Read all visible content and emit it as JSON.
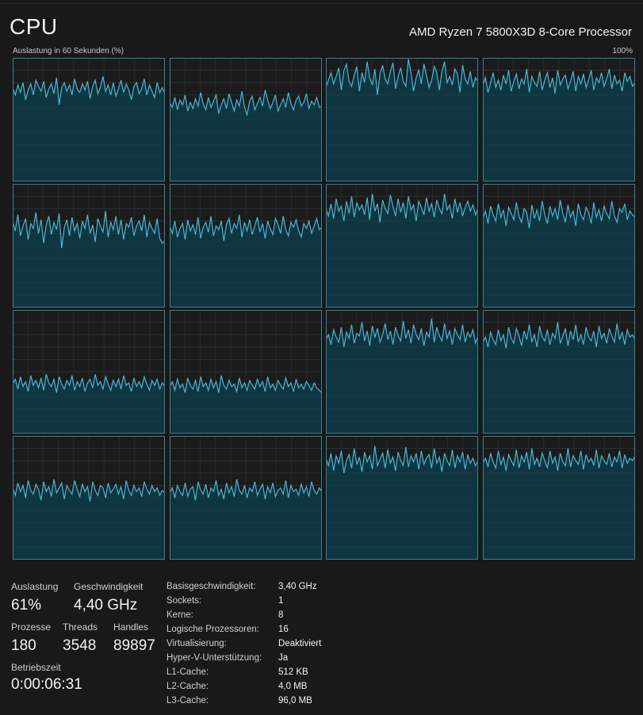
{
  "header": {
    "title": "CPU",
    "cpu_name": "AMD Ryzen 7 5800X3D 8-Core Processor",
    "graph_caption": "Auslastung in 60 Sekunden (%)",
    "graph_max": "100%"
  },
  "colors": {
    "background": "#191919",
    "graph_fill": "#0f3640",
    "graph_line": "#49b6d6",
    "graph_grid": "#1f4a55",
    "graph_border": "#3c7f91"
  },
  "chart_data": {
    "type": "area",
    "title": "Auslastung in 60 Sekunden (%)",
    "ylim": [
      0,
      100
    ],
    "grid": true,
    "series": [
      {
        "values": [
          76,
          70,
          78,
          72,
          80,
          66,
          74,
          79,
          70,
          82,
          77,
          73,
          81,
          68,
          75,
          79,
          71,
          84,
          62,
          76,
          80,
          73,
          78,
          70,
          83,
          75,
          72,
          79,
          74,
          81,
          67,
          77,
          82,
          71,
          76,
          85,
          73,
          78,
          70,
          80,
          69,
          75,
          82,
          72,
          79,
          74,
          66,
          77,
          80,
          71,
          75,
          83,
          70,
          78,
          73,
          68,
          80,
          72,
          76,
          71
        ]
      },
      {
        "values": [
          64,
          60,
          68,
          58,
          66,
          62,
          70,
          57,
          64,
          59,
          67,
          61,
          72,
          63,
          58,
          68,
          60,
          65,
          70,
          55,
          62,
          67,
          59,
          71,
          64,
          57,
          66,
          61,
          73,
          60,
          54,
          65,
          69,
          58,
          63,
          68,
          61,
          74,
          66,
          59,
          64,
          70,
          57,
          62,
          67,
          60,
          72,
          63,
          58,
          66,
          69,
          61,
          64,
          71,
          59,
          65,
          62,
          68,
          60,
          61
        ]
      },
      {
        "values": [
          76,
          82,
          88,
          79,
          85,
          92,
          74,
          90,
          95,
          81,
          77,
          86,
          93,
          73,
          88,
          80,
          97,
          84,
          78,
          91,
          70,
          87,
          94,
          83,
          79,
          89,
          96,
          75,
          85,
          92,
          81,
          77,
          99,
          88,
          73,
          84,
          90,
          79,
          95,
          86,
          76,
          82,
          93,
          88,
          74,
          89,
          97,
          80,
          85,
          78,
          91,
          87,
          72,
          94,
          83,
          79,
          89,
          76,
          84,
          81
        ]
      },
      {
        "values": [
          78,
          84,
          72,
          80,
          88,
          76,
          82,
          74,
          86,
          79,
          90,
          73,
          81,
          87,
          75,
          83,
          79,
          91,
          72,
          85,
          80,
          77,
          89,
          74,
          82,
          88,
          76,
          84,
          71,
          90,
          78,
          83,
          86,
          75,
          81,
          89,
          73,
          85,
          79,
          87,
          76,
          82,
          90,
          74,
          84,
          80,
          88,
          77,
          83,
          91,
          75,
          86,
          79,
          82,
          73,
          88,
          81,
          85,
          77,
          80
        ]
      },
      {
        "values": [
          70,
          62,
          75,
          58,
          66,
          72,
          55,
          68,
          64,
          77,
          60,
          71,
          52,
          67,
          74,
          59,
          69,
          63,
          76,
          48,
          65,
          71,
          58,
          73,
          62,
          68,
          56,
          70,
          64,
          75,
          60,
          67,
          53,
          72,
          66,
          61,
          78,
          57,
          69,
          63,
          74,
          59,
          71,
          55,
          68,
          65,
          73,
          58,
          66,
          70,
          62,
          75,
          57,
          69,
          64,
          60,
          72,
          56,
          52,
          54
        ]
      },
      {
        "values": [
          66,
          60,
          70,
          57,
          64,
          68,
          55,
          71,
          62,
          67,
          59,
          73,
          56,
          65,
          69,
          61,
          74,
          58,
          66,
          63,
          70,
          54,
          67,
          72,
          60,
          68,
          64,
          75,
          57,
          69,
          62,
          71,
          59,
          66,
          73,
          61,
          68,
          56,
          70,
          64,
          59,
          72,
          67,
          60,
          74,
          63,
          58,
          69,
          65,
          71,
          62,
          57,
          68,
          64,
          70,
          60,
          66,
          72,
          63,
          65
        ]
      },
      {
        "values": [
          80,
          74,
          84,
          72,
          88,
          78,
          82,
          70,
          86,
          76,
          90,
          73,
          85,
          79,
          83,
          75,
          89,
          71,
          92,
          78,
          84,
          69,
          87,
          80,
          76,
          91,
          82,
          74,
          88,
          77,
          85,
          72,
          90,
          79,
          83,
          70,
          86,
          81,
          75,
          89,
          78,
          84,
          73,
          87,
          80,
          76,
          92,
          79,
          83,
          72,
          88,
          77,
          85,
          74,
          81,
          86,
          78,
          83,
          75,
          80
        ]
      },
      {
        "values": [
          72,
          78,
          68,
          82,
          75,
          70,
          84,
          73,
          79,
          66,
          81,
          76,
          71,
          85,
          74,
          69,
          80,
          77,
          64,
          83,
          72,
          79,
          70,
          86,
          75,
          68,
          82,
          74,
          80,
          71,
          87,
          76,
          69,
          83,
          73,
          78,
          66,
          84,
          75,
          71,
          81,
          77,
          68,
          85,
          73,
          79,
          70,
          82,
          76,
          72,
          86,
          74,
          69,
          80,
          77,
          84,
          71,
          78,
          75,
          73
        ]
      },
      {
        "values": [
          40,
          44,
          36,
          46,
          38,
          42,
          34,
          47,
          39,
          43,
          37,
          45,
          35,
          48,
          41,
          38,
          44,
          33,
          46,
          40,
          36,
          43,
          39,
          47,
          35,
          42,
          38,
          45,
          34,
          41,
          44,
          37,
          48,
          39,
          42,
          36,
          46,
          40,
          35,
          43,
          38,
          44,
          36,
          47,
          39,
          41,
          34,
          45,
          38,
          42,
          37,
          46,
          40,
          35,
          43,
          39,
          44,
          36,
          41,
          38
        ]
      },
      {
        "values": [
          38,
          42,
          35,
          44,
          37,
          40,
          33,
          45,
          39,
          36,
          43,
          34,
          46,
          38,
          41,
          35,
          44,
          37,
          42,
          33,
          47,
          39,
          36,
          43,
          38,
          40,
          34,
          45,
          37,
          41,
          35,
          43,
          39,
          36,
          44,
          38,
          42,
          34,
          46,
          37,
          40,
          35,
          43,
          39,
          36,
          45,
          38,
          41,
          34,
          44,
          37,
          40,
          36,
          42,
          39,
          35,
          41,
          37,
          35,
          33
        ]
      },
      {
        "values": [
          76,
          80,
          72,
          84,
          78,
          74,
          86,
          70,
          82,
          77,
          88,
          73,
          81,
          79,
          90,
          75,
          83,
          71,
          87,
          78,
          85,
          74,
          80,
          89,
          76,
          83,
          72,
          86,
          79,
          75,
          91,
          77,
          84,
          73,
          88,
          80,
          76,
          85,
          71,
          82,
          78,
          93,
          74,
          86,
          79,
          75,
          89,
          77,
          83,
          72,
          85,
          80,
          76,
          88,
          74,
          82,
          78,
          84,
          73,
          79
        ]
      },
      {
        "values": [
          74,
          78,
          70,
          82,
          76,
          72,
          84,
          75,
          80,
          69,
          86,
          77,
          73,
          85,
          79,
          71,
          83,
          76,
          88,
          74,
          80,
          70,
          87,
          78,
          75,
          84,
          72,
          81,
          77,
          90,
          73,
          79,
          85,
          71,
          83,
          76,
          88,
          74,
          80,
          72,
          86,
          78,
          75,
          83,
          70,
          87,
          77,
          81,
          73,
          85,
          79,
          74,
          89,
          76,
          82,
          72,
          84,
          78,
          80,
          76
        ]
      },
      {
        "values": [
          58,
          52,
          62,
          55,
          60,
          50,
          64,
          56,
          53,
          61,
          57,
          48,
          63,
          55,
          59,
          51,
          65,
          54,
          58,
          62,
          49,
          60,
          56,
          53,
          64,
          57,
          51,
          61,
          55,
          59,
          47,
          63,
          56,
          52,
          60,
          58,
          50,
          62,
          54,
          57,
          61,
          53,
          59,
          49,
          64,
          56,
          52,
          60,
          55,
          58,
          51,
          63,
          57,
          53,
          60,
          55,
          58,
          52,
          56,
          54
        ]
      },
      {
        "values": [
          54,
          58,
          50,
          60,
          55,
          52,
          62,
          51,
          57,
          59,
          48,
          63,
          56,
          53,
          61,
          50,
          58,
          55,
          64,
          52,
          57,
          49,
          62,
          54,
          59,
          51,
          65,
          56,
          53,
          60,
          50,
          58,
          55,
          63,
          52,
          57,
          61,
          49,
          59,
          54,
          62,
          51,
          56,
          58,
          53,
          64,
          50,
          60,
          55,
          57,
          52,
          61,
          54,
          59,
          51,
          63,
          56,
          53,
          58,
          55
        ]
      },
      {
        "values": [
          82,
          76,
          86,
          72,
          84,
          78,
          88,
          70,
          80,
          85,
          74,
          90,
          77,
          83,
          71,
          87,
          79,
          84,
          73,
          92,
          76,
          81,
          86,
          74,
          89,
          78,
          83,
          72,
          87,
          80,
          76,
          91,
          75,
          84,
          79,
          86,
          73,
          88,
          77,
          82,
          85,
          74,
          90,
          78,
          83,
          71,
          86,
          80,
          76,
          89,
          74,
          84,
          79,
          87,
          73,
          85,
          78,
          82,
          76,
          80
        ]
      },
      {
        "values": [
          78,
          82,
          75,
          86,
          79,
          74,
          88,
          77,
          83,
          72,
          85,
          80,
          76,
          89,
          74,
          84,
          79,
          87,
          73,
          90,
          77,
          82,
          75,
          86,
          80,
          74,
          88,
          78,
          83,
          72,
          86,
          79,
          76,
          90,
          75,
          84,
          80,
          77,
          88,
          73,
          85,
          79,
          82,
          76,
          89,
          74,
          84,
          80,
          77,
          86,
          75,
          83,
          79,
          88,
          74,
          85,
          78,
          82,
          80,
          84
        ]
      }
    ]
  },
  "stats": {
    "utilization_label": "Auslastung",
    "utilization_value": "61%",
    "speed_label": "Geschwindigkeit",
    "speed_value": "4,40 GHz",
    "processes_label": "Prozesse",
    "processes_value": "180",
    "threads_label": "Threads",
    "threads_value": "3548",
    "handles_label": "Handles",
    "handles_value": "89897",
    "uptime_label": "Betriebszeit",
    "uptime_value": "0:00:06:31"
  },
  "properties": [
    {
      "label": "Basisgeschwindigkeit:",
      "value": "3,40 GHz"
    },
    {
      "label": "Sockets:",
      "value": "1"
    },
    {
      "label": "Kerne:",
      "value": "8"
    },
    {
      "label": "Logische Prozessoren:",
      "value": "16"
    },
    {
      "label": "Virtualisierung:",
      "value": "Deaktiviert"
    },
    {
      "label": "Hyper-V-Unterstützung:",
      "value": "Ja"
    },
    {
      "label": "L1-Cache:",
      "value": "512 KB"
    },
    {
      "label": "L2-Cache:",
      "value": "4,0 MB"
    },
    {
      "label": "L3-Cache:",
      "value": "96,0 MB"
    }
  ]
}
